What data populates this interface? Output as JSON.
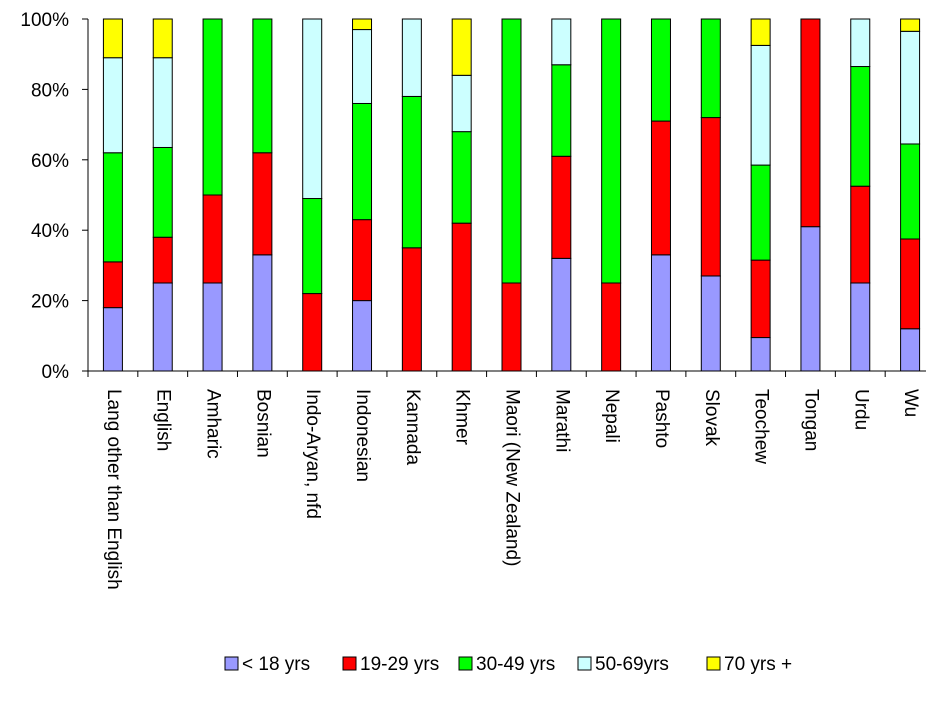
{
  "chart_data": {
    "type": "bar",
    "stacked": true,
    "percent": true,
    "ylim": [
      0,
      100
    ],
    "yticks": [
      "0%",
      "20%",
      "40%",
      "60%",
      "80%",
      "100%"
    ],
    "legend_position": "bottom",
    "categories": [
      "Lang other than English",
      "English",
      "Amharic",
      "Bosnian",
      "Indo-Aryan, nfd",
      "Indonesian",
      "Kannada",
      "Khmer",
      "Maori (New Zealand)",
      "Marathi",
      "Nepali",
      "Pashto",
      "Slovak",
      "Teochew",
      "Tongan",
      "Urdu",
      "Wu"
    ],
    "series": [
      {
        "name": "< 18 yrs",
        "color": "#9999ff",
        "values": [
          18,
          25,
          25,
          33,
          0,
          20,
          0,
          0,
          0,
          32,
          0,
          33,
          27,
          9.5,
          41,
          25,
          12
        ]
      },
      {
        "name": "19-29 yrs",
        "color": "#ff0000",
        "values": [
          13,
          13,
          25,
          29,
          22,
          23,
          35,
          42,
          25,
          29,
          25,
          38,
          45,
          22,
          59,
          27.5,
          25.5
        ]
      },
      {
        "name": "30-49 yrs",
        "color": "#00ff00",
        "values": [
          31,
          25.5,
          50,
          38,
          27,
          33,
          43,
          26,
          75,
          26,
          75,
          29,
          28,
          27,
          0,
          34,
          27
        ]
      },
      {
        "name": "50-69yrs",
        "color": "#ccffff",
        "values": [
          27,
          25.5,
          0,
          0,
          51,
          21,
          22,
          16,
          0,
          13,
          0,
          0,
          0,
          34,
          0,
          13.5,
          32
        ]
      },
      {
        "name": "70 yrs +",
        "color": "#ffff00",
        "values": [
          11,
          11,
          0,
          0,
          0,
          3,
          0,
          16,
          0,
          0,
          0,
          0,
          0,
          7.5,
          0,
          0,
          3.5
        ]
      }
    ]
  }
}
